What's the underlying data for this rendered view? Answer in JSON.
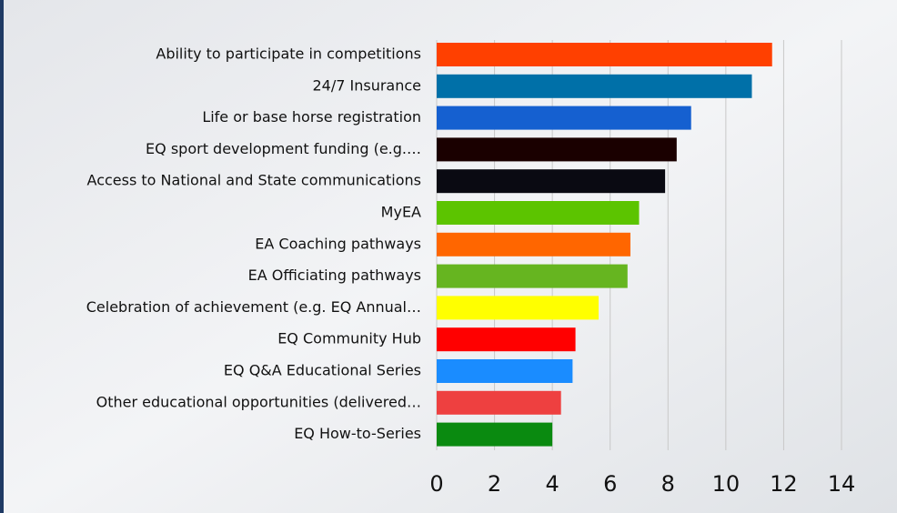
{
  "chart_data": {
    "type": "bar",
    "orientation": "horizontal",
    "categories": [
      "Ability to participate in competitions",
      "24/7 Insurance",
      "Life or base horse registration",
      "EQ sport development funding (e.g.…",
      "Access to National and State communications",
      "MyEA",
      "EA Coaching pathways",
      "EA Officiating pathways",
      "Celebration of achievement (e.g. EQ Annual…",
      "EQ Community Hub",
      "EQ Q&A Educational Series",
      "Other educational opportunities (delivered…",
      "EQ How-to-Series"
    ],
    "values": [
      11.6,
      10.9,
      8.8,
      8.3,
      7.9,
      7.0,
      6.7,
      6.6,
      5.6,
      4.8,
      4.7,
      4.3,
      4.0
    ],
    "colors": [
      "#ff4000",
      "#0070a8",
      "#1560d0",
      "#1a0000",
      "#0a0a12",
      "#5cc400",
      "#ff6600",
      "#66b520",
      "#ffff00",
      "#ff0000",
      "#1a8cff",
      "#ee4040",
      "#0a8a10"
    ],
    "xlim": [
      0,
      14
    ],
    "xticks": [
      0,
      2,
      4,
      6,
      8,
      10,
      12,
      14
    ],
    "grid": true
  }
}
